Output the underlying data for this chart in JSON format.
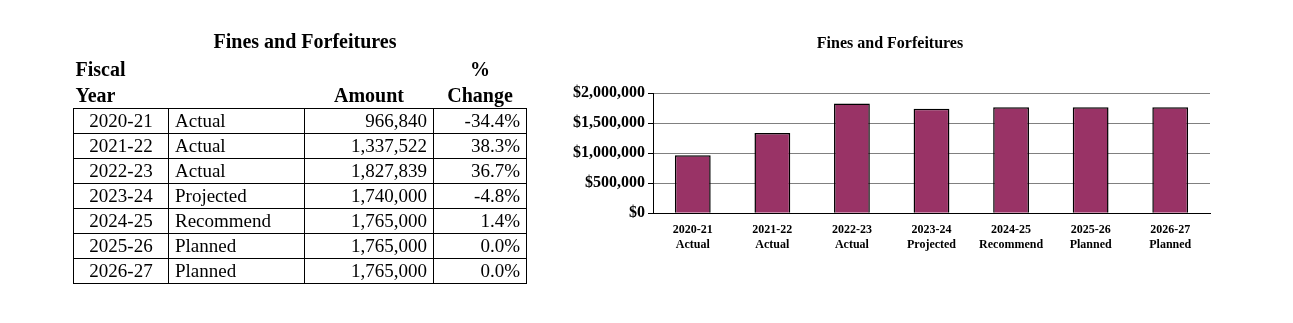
{
  "chart_data": [
    {
      "type": "other",
      "title": "Fines and Forfeitures",
      "annotations": [
        "Fiscal Year",
        "Amount",
        "% Change",
        "2020-21",
        "Actual",
        "966,840",
        "-34.4%",
        "2021-22",
        "Actual",
        "1,337,522",
        "38.3%",
        "2022-23",
        "Actual",
        "1,827,839",
        "36.7%",
        "2023-24",
        "Projected",
        "1,740,000",
        "-4.8%",
        "2024-25",
        "Recommend",
        "1,765,000",
        "1.4%",
        "2025-26",
        "Planned",
        "1,765,000",
        "0.0%",
        "2026-27",
        "Planned",
        "1,765,000",
        "0.0%"
      ]
    },
    {
      "type": "bar",
      "title": "Fines and Forfeitures",
      "categories": [
        "2020-21\nActual",
        "2021-22\nActual",
        "2022-23\nActual",
        "2023-24\nProjected",
        "2024-25\nRecommend",
        "2025-26\nPlanned",
        "2026-27\nPlanned"
      ],
      "values": [
        966840,
        1337522,
        1827839,
        1740000,
        1765000,
        1765000,
        1765000
      ],
      "color": "#993366",
      "ylim": [
        0,
        2000000
      ],
      "yticks": [
        {
          "value": 0,
          "label": "$0"
        },
        {
          "value": 500000,
          "label": "$500,000"
        },
        {
          "value": 1000000,
          "label": "$1,000,000"
        },
        {
          "value": 1500000,
          "label": "$1,500,000"
        },
        {
          "value": 2000000,
          "label": "$2,000,000"
        }
      ],
      "grid": "y",
      "legend": false
    }
  ]
}
